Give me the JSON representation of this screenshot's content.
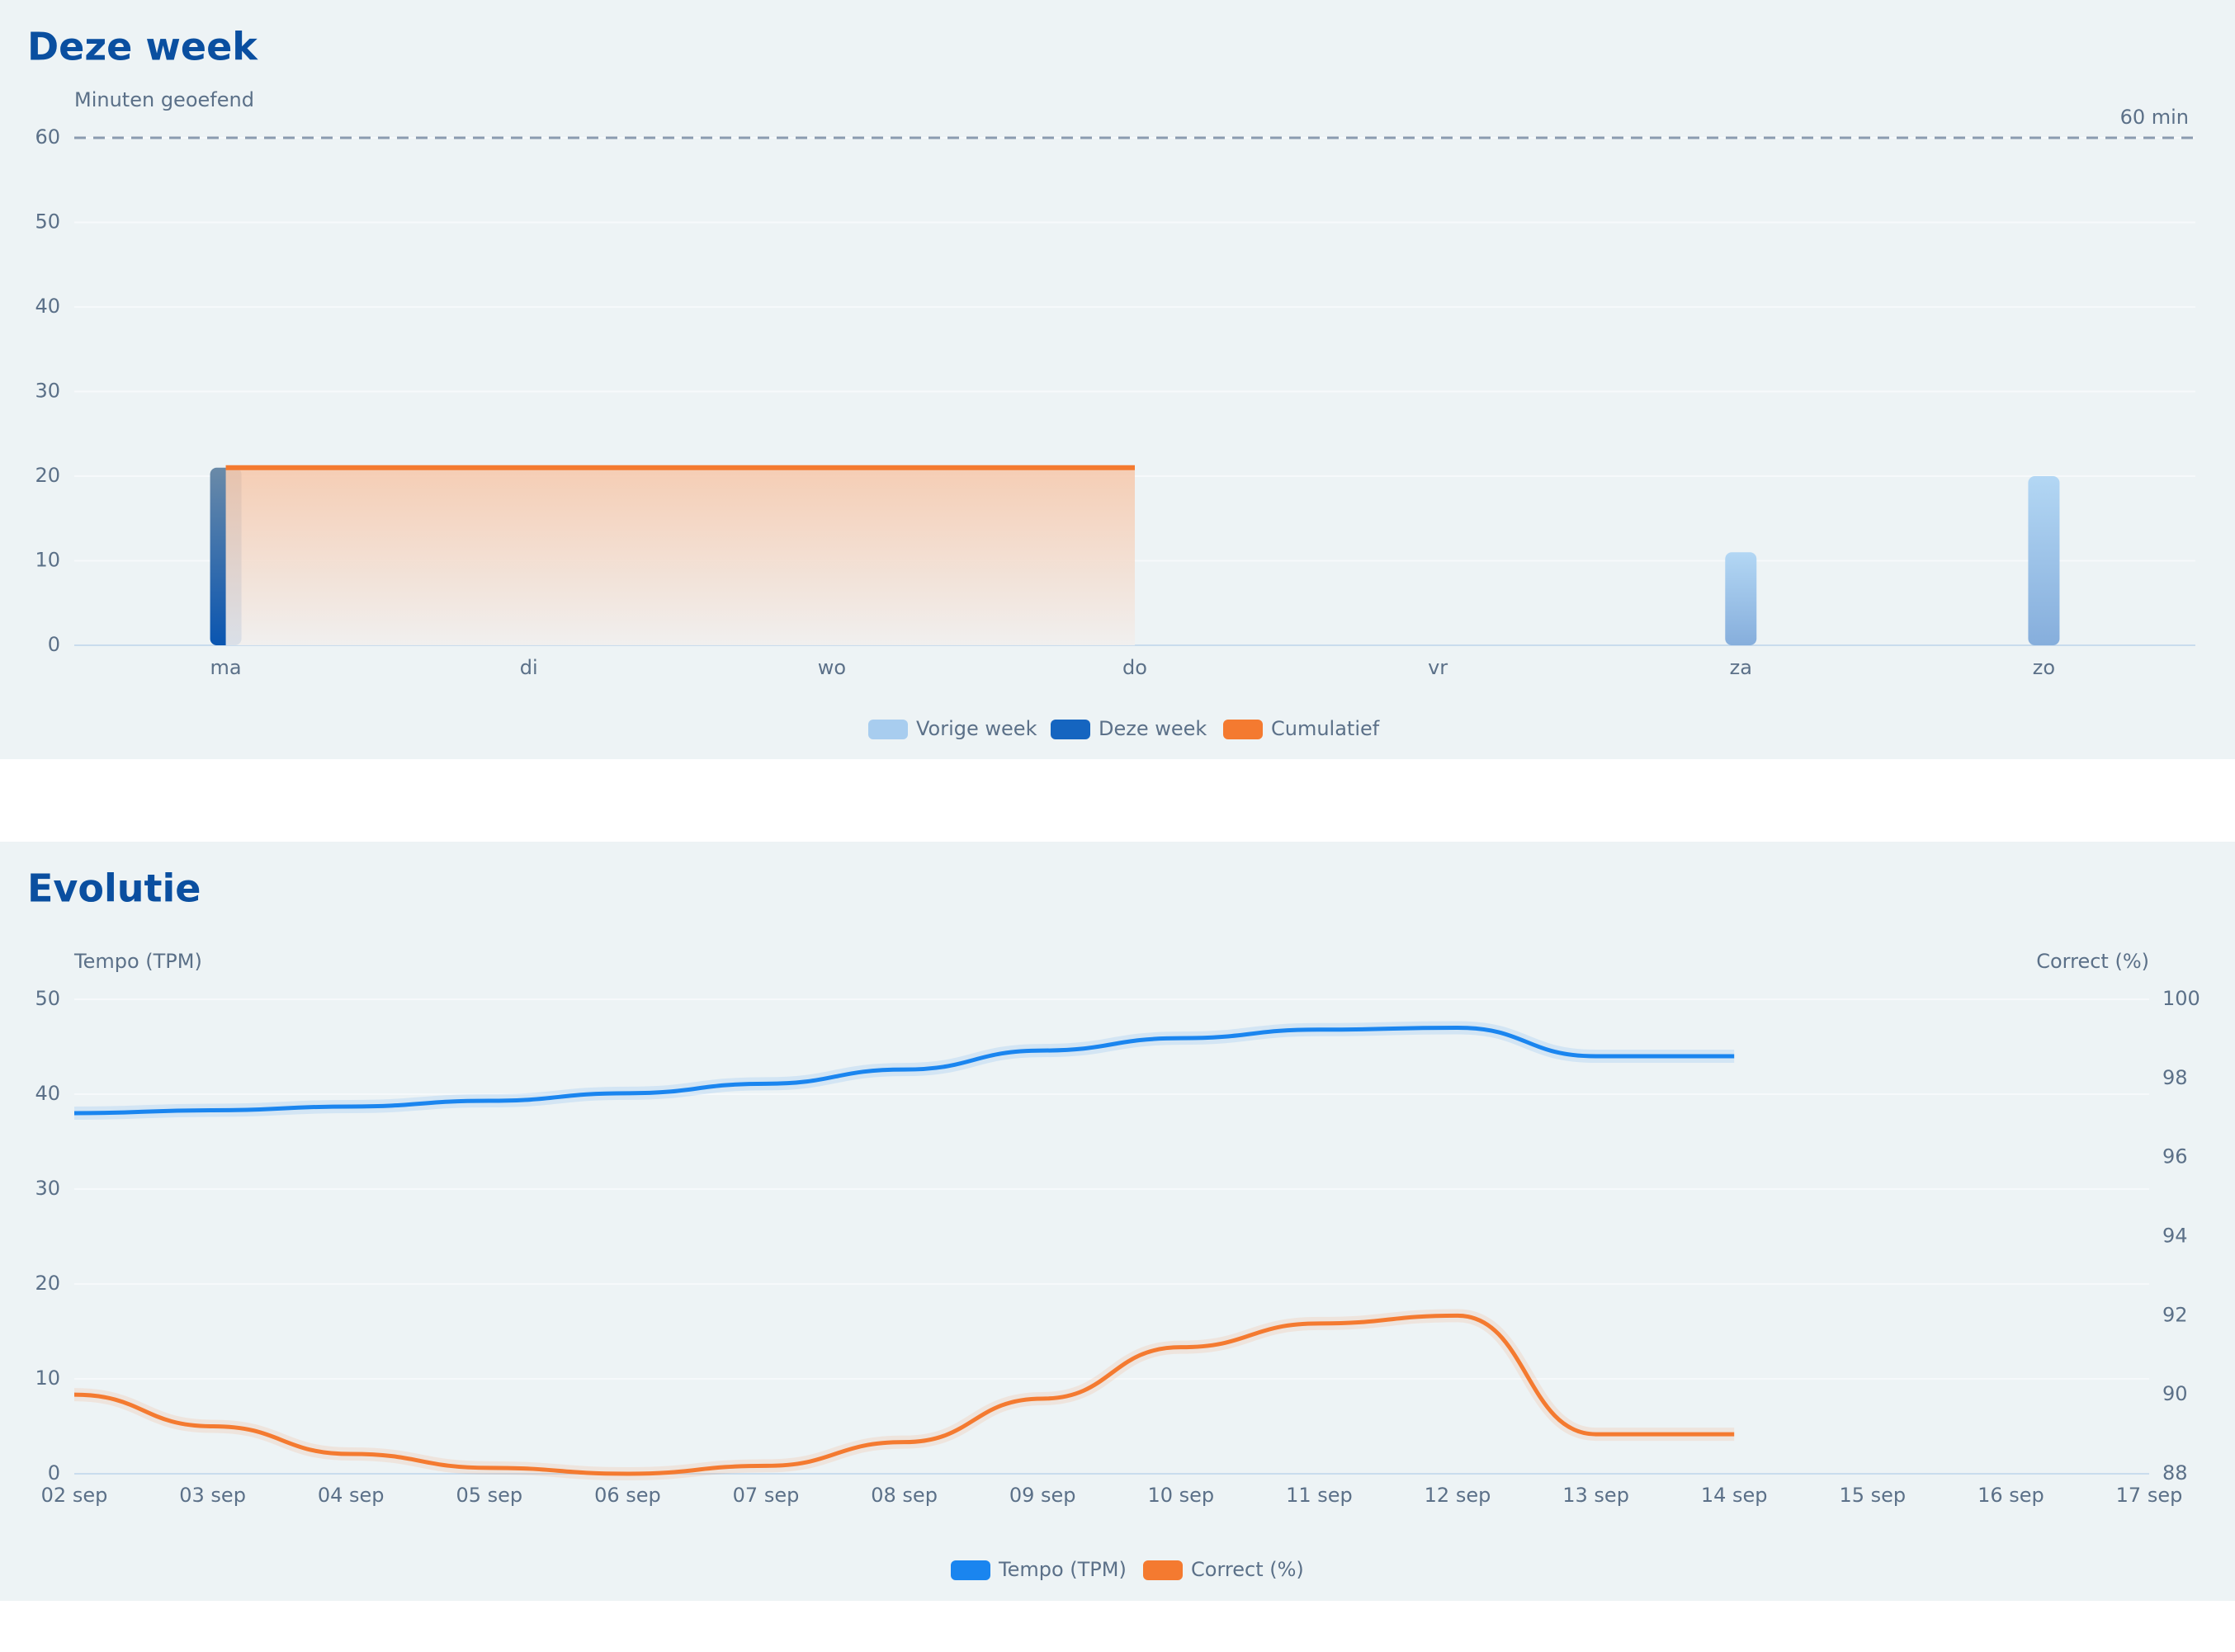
{
  "chart_data": [
    {
      "type": "bar",
      "title": "Deze week",
      "y_label": "Minuten geoefend",
      "categories": [
        "ma",
        "di",
        "wo",
        "do",
        "vr",
        "za",
        "zo"
      ],
      "series": [
        {
          "name": "Vorige week",
          "color": "#a8cdef",
          "values": [
            null,
            null,
            null,
            null,
            null,
            11,
            20
          ]
        },
        {
          "name": "Deze week",
          "color": "#1565c0",
          "values": [
            21,
            null,
            null,
            null,
            null,
            null,
            null
          ]
        },
        {
          "name": "Cumulatief",
          "color": "#f47a30",
          "kind": "area",
          "values": [
            21,
            21,
            21,
            21,
            null,
            null,
            null
          ]
        }
      ],
      "reference": {
        "value": 60,
        "label": "60 min"
      },
      "ylim": [
        0,
        60
      ],
      "yticks": [
        0,
        10,
        20,
        30,
        40,
        50,
        60
      ],
      "grid": true
    },
    {
      "type": "line",
      "title": "Evolutie",
      "y_label": "Tempo (TPM)",
      "y2_label": "Correct (%)",
      "x": [
        "02 sep",
        "03 sep",
        "04 sep",
        "05 sep",
        "06 sep",
        "07 sep",
        "08 sep",
        "09 sep",
        "10 sep",
        "11 sep",
        "12 sep",
        "13 sep",
        "14 sep",
        "15 sep",
        "16 sep",
        "17 sep"
      ],
      "series": [
        {
          "name": "Tempo (TPM)",
          "color": "#1a85ef",
          "values": [
            38.0,
            38.3,
            38.7,
            39.3,
            40.1,
            41.1,
            42.6,
            44.6,
            45.9,
            46.8,
            47.0,
            44.0,
            44.0,
            null,
            null,
            null
          ]
        },
        {
          "name": "Correct (%)",
          "color": "#f47a30",
          "axis": "y2",
          "values": [
            90.0,
            89.2,
            88.5,
            88.15,
            88.0,
            88.2,
            88.8,
            89.9,
            91.2,
            91.8,
            92.0,
            89.0,
            89.0,
            null,
            null,
            null
          ]
        }
      ],
      "ylim": [
        0,
        50
      ],
      "yticks": [
        0,
        10,
        20,
        30,
        40,
        50
      ],
      "y2lim": [
        88,
        100
      ],
      "y2ticks": [
        88,
        90,
        92,
        94,
        96,
        98,
        100
      ],
      "grid": true
    }
  ]
}
